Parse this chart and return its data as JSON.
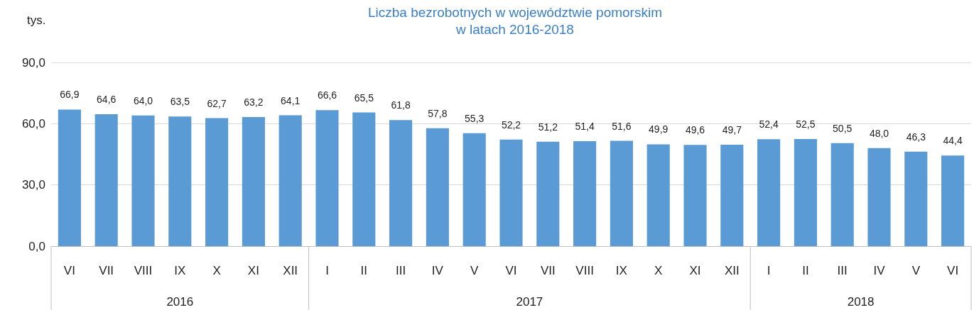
{
  "chart_data": {
    "type": "bar",
    "title": "Liczba bezrobotnych w województwie pomorskim\nw latach 2016-2018",
    "ylabel": "tys.",
    "categories": [
      "VI",
      "VII",
      "VIII",
      "IX",
      "X",
      "XI",
      "XII",
      "I",
      "II",
      "III",
      "IV",
      "V",
      "VI",
      "VII",
      "VIII",
      "IX",
      "X",
      "XI",
      "XII",
      "I",
      "II",
      "III",
      "IV",
      "V",
      "VI"
    ],
    "values": [
      66.9,
      64.6,
      64.0,
      63.5,
      62.7,
      63.2,
      64.1,
      66.6,
      65.5,
      61.8,
      57.8,
      55.3,
      52.2,
      51.2,
      51.4,
      51.6,
      49.9,
      49.6,
      49.7,
      52.4,
      52.5,
      50.5,
      48.0,
      46.3,
      44.4
    ],
    "value_labels": [
      "66,9",
      "64,6",
      "64,0",
      "63,5",
      "62,7",
      "63,2",
      "64,1",
      "66,6",
      "65,5",
      "61,8",
      "57,8",
      "55,3",
      "52,2",
      "51,2",
      "51,4",
      "51,6",
      "49,9",
      "49,6",
      "49,7",
      "52,4",
      "52,5",
      "50,5",
      "48,0",
      "46,3",
      "44,4"
    ],
    "color": "#5b9bd5",
    "ylim": [
      0,
      90
    ],
    "yticks": [
      {
        "value": 0,
        "label": "0,0"
      },
      {
        "value": 30,
        "label": "30,0"
      },
      {
        "value": 60,
        "label": "60,0"
      },
      {
        "value": 90,
        "label": "90,0"
      }
    ],
    "grid": "y",
    "annotations": [
      "2016",
      "2017",
      "2018"
    ]
  }
}
